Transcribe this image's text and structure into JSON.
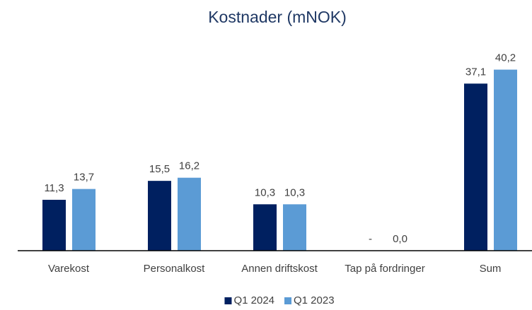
{
  "chart_data": {
    "type": "bar",
    "title": "Kostnader (mNOK)",
    "categories": [
      "Varekost",
      "Personalkost",
      "Annen driftskost",
      "Tap på fordringer",
      "Sum"
    ],
    "series": [
      {
        "name": "Q1 2024",
        "color": "#002060",
        "values": [
          11.3,
          15.5,
          10.3,
          0,
          37.1
        ],
        "value_labels": [
          "11,3",
          "15,5",
          "10,3",
          "-",
          "37,1"
        ]
      },
      {
        "name": "Q1 2023",
        "color": "#5b9bd5",
        "values": [
          13.7,
          16.2,
          10.3,
          0,
          40.2
        ],
        "value_labels": [
          "13,7",
          "16,2",
          "10,3",
          "0,0",
          "40,2"
        ]
      }
    ],
    "ylim": [
      0,
      45
    ],
    "legend": "bottom"
  }
}
